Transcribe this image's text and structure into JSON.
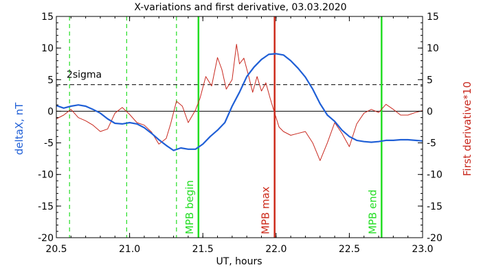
{
  "chart_data": {
    "type": "line",
    "title": "X-variations and first derivative, 03.03.2020",
    "xlabel": "UT, hours",
    "ylabel_left": "deltaX, nT",
    "ylabel_right": "First derivative*10",
    "xlim": [
      20.5,
      23.0
    ],
    "ylim": [
      -20,
      15
    ],
    "x_ticks": [
      "20.5",
      "21.0",
      "21.5",
      "22.0",
      "22.5",
      "23.0"
    ],
    "y_ticks_left": [
      "15",
      "10",
      "5",
      "0",
      "-5",
      "-10",
      "-15",
      "-20"
    ],
    "y_ticks_right": [
      "15",
      "10",
      "5",
      "0",
      "-5",
      "-10",
      "-15",
      "-20"
    ],
    "colors": {
      "deltaX": "#1f5fd6",
      "derivative": "#c8281e",
      "green": "#22dd22",
      "red_marker": "#cc2a1a",
      "axis": "#000000"
    },
    "threshold": {
      "label": "2sigma",
      "value": 4.2
    },
    "green_dashed_x": [
      20.59,
      20.98,
      21.32
    ],
    "markers": [
      {
        "label": "MPB begin",
        "x": 21.47,
        "color": "#22dd22"
      },
      {
        "label": "MPB max",
        "x": 21.99,
        "color": "#cc2a1a"
      },
      {
        "label": "MPB end",
        "x": 22.72,
        "color": "#22dd22"
      }
    ],
    "series": [
      {
        "name": "deltaX, nT",
        "x": [
          20.5,
          20.55,
          20.6,
          20.65,
          20.7,
          20.75,
          20.8,
          20.85,
          20.9,
          20.95,
          21.0,
          21.05,
          21.1,
          21.15,
          21.2,
          21.25,
          21.3,
          21.35,
          21.4,
          21.45,
          21.5,
          21.55,
          21.6,
          21.65,
          21.7,
          21.75,
          21.8,
          21.85,
          21.9,
          21.95,
          22.0,
          22.05,
          22.1,
          22.15,
          22.2,
          22.25,
          22.3,
          22.35,
          22.4,
          22.45,
          22.5,
          22.55,
          22.6,
          22.65,
          22.7,
          22.75,
          22.8,
          22.85,
          22.9,
          22.95,
          23.0
        ],
        "values": [
          0.9,
          0.5,
          0.8,
          1.0,
          0.8,
          0.3,
          -0.3,
          -1.2,
          -1.9,
          -2.0,
          -1.8,
          -2.0,
          -2.6,
          -3.5,
          -4.5,
          -5.4,
          -6.2,
          -5.8,
          -6.0,
          -6.0,
          -5.2,
          -4.0,
          -3.0,
          -1.8,
          0.8,
          3.0,
          5.5,
          7.0,
          8.2,
          9.0,
          9.1,
          8.9,
          8.0,
          6.8,
          5.4,
          3.5,
          1.2,
          -0.6,
          -1.6,
          -3.0,
          -4.0,
          -4.6,
          -4.8,
          -4.9,
          -4.8,
          -4.6,
          -4.6,
          -4.5,
          -4.5,
          -4.6,
          -4.7
        ]
      },
      {
        "name": "First derivative*10",
        "x": [
          20.5,
          20.55,
          20.6,
          20.65,
          20.7,
          20.75,
          20.8,
          20.85,
          20.9,
          20.95,
          21.0,
          21.05,
          21.1,
          21.15,
          21.2,
          21.25,
          21.28,
          21.32,
          21.36,
          21.4,
          21.45,
          21.48,
          21.52,
          21.56,
          21.6,
          21.63,
          21.66,
          21.7,
          21.73,
          21.75,
          21.78,
          21.81,
          21.84,
          21.87,
          21.9,
          21.93,
          21.96,
          21.99,
          22.02,
          22.05,
          22.1,
          22.15,
          22.2,
          22.25,
          22.3,
          22.35,
          22.4,
          22.45,
          22.5,
          22.55,
          22.6,
          22.65,
          22.7,
          22.75,
          22.8,
          22.85,
          22.9,
          22.95,
          23.0
        ],
        "values": [
          -1.2,
          -0.6,
          0.3,
          -1.0,
          -1.5,
          -2.2,
          -3.2,
          -2.8,
          -0.3,
          0.6,
          -0.5,
          -1.8,
          -2.2,
          -3.3,
          -5.2,
          -4.3,
          -2.0,
          1.6,
          0.8,
          -1.8,
          0.2,
          2.0,
          5.5,
          4.0,
          8.5,
          6.6,
          3.5,
          5.0,
          10.6,
          7.5,
          8.4,
          5.8,
          3.0,
          5.5,
          3.2,
          4.5,
          2.0,
          -0.3,
          -2.5,
          -3.2,
          -3.8,
          -3.5,
          -3.2,
          -5.0,
          -7.8,
          -5.0,
          -1.8,
          -3.5,
          -5.6,
          -2.0,
          -0.3,
          0.3,
          -0.2,
          1.1,
          0.3,
          -0.6,
          -0.6,
          -0.2,
          0.1
        ]
      }
    ]
  }
}
